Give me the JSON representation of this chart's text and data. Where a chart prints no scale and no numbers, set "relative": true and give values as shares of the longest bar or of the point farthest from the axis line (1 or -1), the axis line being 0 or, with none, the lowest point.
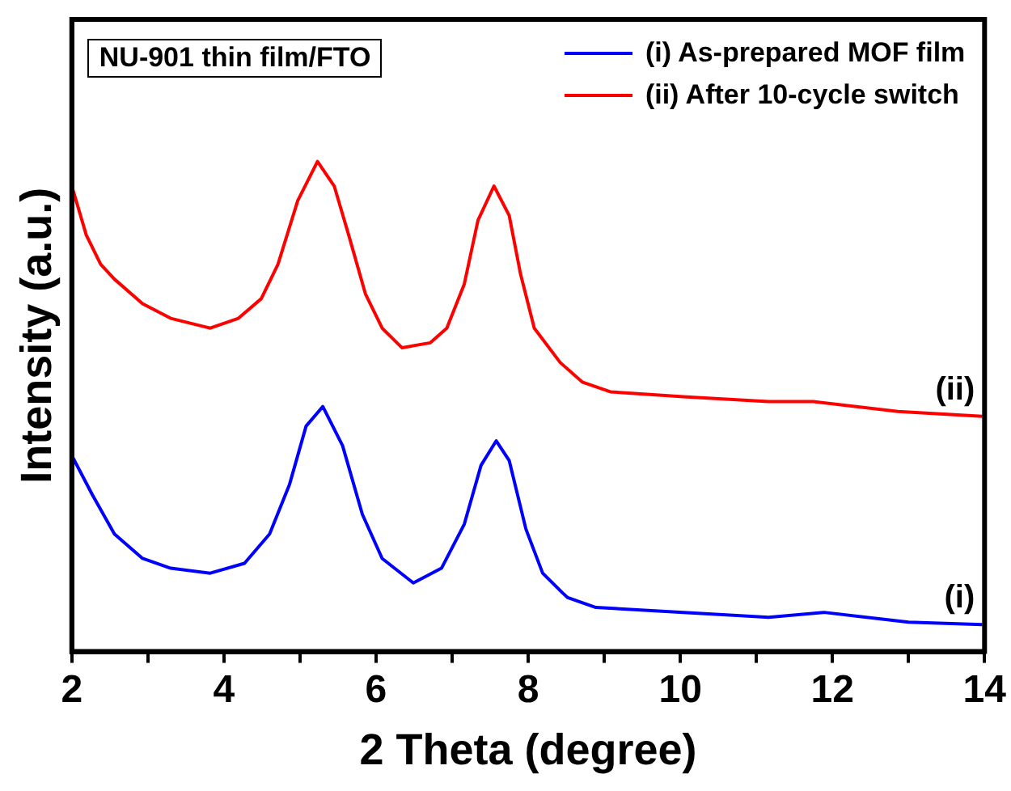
{
  "chart_data": {
    "type": "line",
    "xlabel": "2 Theta (degree)",
    "ylabel": "Intensity (a.u.)",
    "relative": true,
    "xlim": [
      2,
      14
    ],
    "xticks": [
      2,
      {
        "value": 3,
        "label": null
      },
      4,
      {
        "value": 5,
        "label": null
      },
      6,
      {
        "value": 7,
        "label": null
      },
      8,
      {
        "value": 9,
        "label": null
      },
      10,
      {
        "value": 11,
        "label": null
      },
      12,
      {
        "value": 13,
        "label": null
      },
      14
    ],
    "grid": false,
    "legend": "top right",
    "marker": "none",
    "line_style": "solid",
    "annotations": [
      "NU-901 thin film/FTO",
      "(ii)",
      "(i)"
    ],
    "series": [
      {
        "name": "(i) As-prepared MOF film",
        "color": "#0000ff",
        "x": [
          2.0,
          2.27,
          2.56,
          2.93,
          3.3,
          3.82,
          4.27,
          4.6,
          4.86,
          5.08,
          5.3,
          5.56,
          5.82,
          6.08,
          6.49,
          6.86,
          7.16,
          7.38,
          7.58,
          7.75,
          7.97,
          8.19,
          8.45,
          8.52,
          8.89,
          10.04,
          11.16,
          11.89,
          13.0,
          13.97
        ],
        "values": [
          0.4,
          0.32,
          0.24,
          0.19,
          0.17,
          0.16,
          0.18,
          0.24,
          0.34,
          0.46,
          0.5,
          0.42,
          0.28,
          0.19,
          0.14,
          0.17,
          0.26,
          0.38,
          0.43,
          0.39,
          0.25,
          0.16,
          0.12,
          0.11,
          0.09,
          0.08,
          0.07,
          0.08,
          0.06,
          0.055
        ]
      },
      {
        "name": "(ii) After 10-cycle switch",
        "color": "#ff0000",
        "x": [
          2.0,
          2.19,
          2.38,
          2.56,
          2.93,
          3.3,
          3.82,
          4.19,
          4.49,
          4.71,
          4.97,
          5.23,
          5.45,
          5.64,
          5.86,
          6.08,
          6.34,
          6.71,
          6.93,
          7.16,
          7.34,
          7.55,
          7.75,
          7.9,
          8.08,
          8.42,
          8.71,
          9.08,
          10.04,
          11.16,
          11.75,
          12.86,
          13.97
        ],
        "values": [
          0.95,
          0.85,
          0.79,
          0.76,
          0.71,
          0.68,
          0.66,
          0.68,
          0.72,
          0.79,
          0.92,
          1.0,
          0.95,
          0.85,
          0.73,
          0.66,
          0.62,
          0.63,
          0.66,
          0.75,
          0.88,
          0.95,
          0.89,
          0.77,
          0.66,
          0.59,
          0.55,
          0.53,
          0.52,
          0.51,
          0.51,
          0.49,
          0.48
        ]
      }
    ]
  }
}
